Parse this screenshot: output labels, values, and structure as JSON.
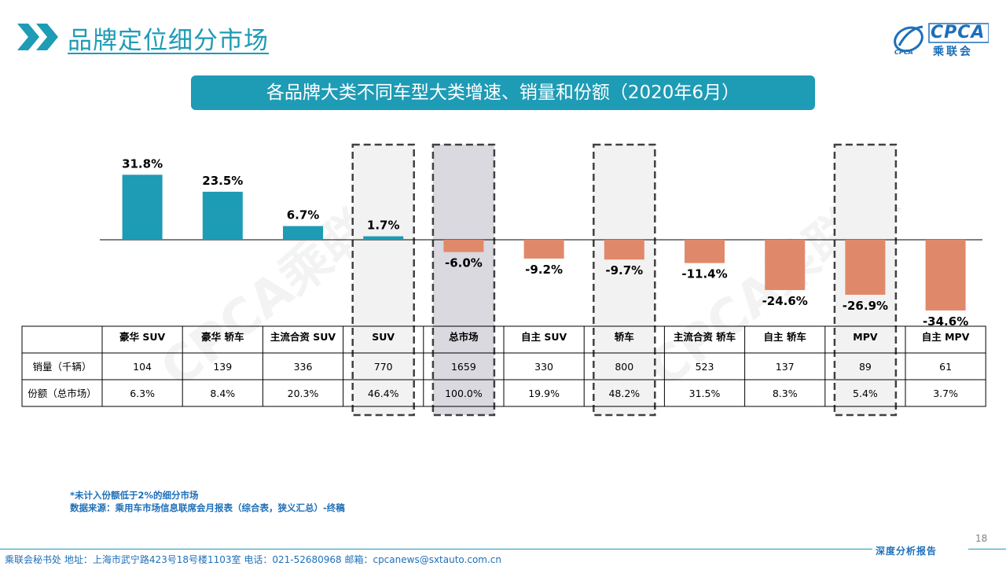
{
  "header": {
    "title": "品牌定位细分市场",
    "logo_top": "CPCA",
    "logo_bottom": "乘联会",
    "logo_sub": "CPCA"
  },
  "chart_title": "各品牌大类不同车型大类增速、销量和份额（2020年6月）",
  "chart_data": {
    "type": "bar",
    "categories": [
      "豪华 SUV",
      "豪华 轿车",
      "主流合资 SUV",
      "SUV",
      "总市场",
      "自主 SUV",
      "轿车",
      "主流合资 轿车",
      "自主 轿车",
      "MPV",
      "自主 MPV"
    ],
    "values": [
      31.8,
      23.5,
      6.7,
      1.7,
      -6.0,
      -9.2,
      -9.7,
      -11.4,
      -24.6,
      -26.9,
      -34.6
    ],
    "value_labels": [
      "31.8%",
      "23.5%",
      "6.7%",
      "1.7%",
      "-6.0%",
      "-9.2%",
      "-9.7%",
      "-11.4%",
      "-24.6%",
      "-26.9%",
      "-34.6%"
    ],
    "positive_color": "#1e9bb5",
    "negative_color": "#e0896a",
    "highlighted_categories": [
      "SUV",
      "总市场",
      "轿车",
      "MPV"
    ],
    "table": {
      "rows": [
        {
          "label": "销量（千辆）",
          "values": [
            "104",
            "139",
            "336",
            "770",
            "1659",
            "330",
            "800",
            "523",
            "137",
            "89",
            "61"
          ]
        },
        {
          "label": "份额（总市场）",
          "values": [
            "6.3%",
            "8.4%",
            "20.3%",
            "46.4%",
            "100.0%",
            "19.9%",
            "48.2%",
            "31.5%",
            "8.3%",
            "5.4%",
            "3.7%"
          ]
        }
      ]
    }
  },
  "notes": {
    "line1": "*未计入份额低于2%的细分市场",
    "line2": "数据来源：乘用车市场信息联席会月报表（综合表，狭义汇总）-终稿"
  },
  "footer": {
    "address": "乘联会秘书处  地址：上海市武宁路423号18号楼1103室  电话：021-52680968  邮箱：cpcanews@sxtauto.com.cn",
    "right_label": "深度分析报告",
    "page_number": "18"
  },
  "watermark": "CPCA乘联会"
}
